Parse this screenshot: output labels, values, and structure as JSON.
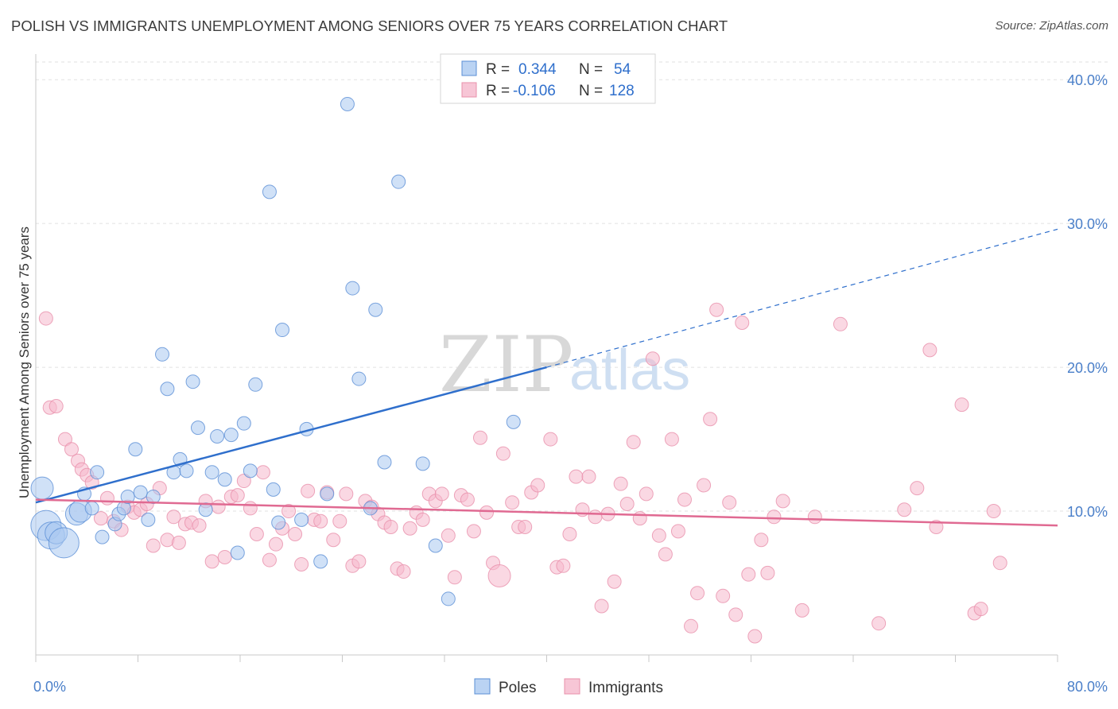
{
  "header": {
    "title": "POLISH VS IMMIGRANTS UNEMPLOYMENT AMONG SENIORS OVER 75 YEARS CORRELATION CHART",
    "source": "Source: ZipAtlas.com"
  },
  "watermark": {
    "zip": "ZIP",
    "atlas": "atlas"
  },
  "legend": {
    "r_label": "R =",
    "n_label": "N =",
    "rows": [
      {
        "series": "Poles",
        "r": "0.344",
        "n": "54",
        "color": "#a9c8f0"
      },
      {
        "series": "Immigrants",
        "r": "-0.106",
        "n": "128",
        "color": "#f5b8cc"
      }
    ]
  },
  "colors": {
    "poles_fill": "#a9c8f0",
    "poles_stroke": "#5b8fd6",
    "poles_line": "#2f6fcc",
    "immigrants_fill": "#f5b8cc",
    "immigrants_stroke": "#e890ab",
    "immigrants_line": "#e06a92",
    "grid": "#e2e2e2",
    "tick_label": "#4a7fc9"
  },
  "chart_data": {
    "type": "scatter",
    "title": "POLISH VS IMMIGRANTS UNEMPLOYMENT AMONG SENIORS OVER 75 YEARS CORRELATION CHART",
    "xlabel": "",
    "ylabel": "Unemployment Among Seniors over 75 years",
    "xlim": [
      0,
      80
    ],
    "ylim": [
      0,
      42
    ],
    "x_tick_labels": [
      "0.0%",
      "80.0%"
    ],
    "y_ticks": [
      10,
      20,
      30,
      40
    ],
    "y_tick_labels": [
      "10.0%",
      "20.0%",
      "30.0%",
      "40.0%"
    ],
    "legend_position": "bottom",
    "series": [
      {
        "name": "Poles",
        "r": 0.344,
        "n": 54,
        "trend": {
          "x": [
            0,
            40
          ],
          "y": [
            10.6,
            20.0
          ],
          "dashed_to": {
            "x": 80,
            "y": 29.6
          }
        },
        "points": [
          [
            0.5,
            11.6,
            2
          ],
          [
            0.8,
            9.0,
            3
          ],
          [
            1.2,
            8.3,
            4
          ],
          [
            1.6,
            8.5,
            2
          ],
          [
            2.2,
            7.8,
            3
          ],
          [
            3.2,
            9.8,
            2
          ],
          [
            3.5,
            10.0,
            2
          ],
          [
            3.8,
            11.2,
            1
          ],
          [
            4.4,
            10.2,
            1
          ],
          [
            4.8,
            12.7,
            1
          ],
          [
            5.2,
            8.2,
            1
          ],
          [
            6.2,
            9.1,
            1
          ],
          [
            6.5,
            9.8,
            1
          ],
          [
            6.9,
            10.2,
            1
          ],
          [
            7.2,
            11.0,
            1
          ],
          [
            7.8,
            14.3,
            1
          ],
          [
            8.2,
            11.3,
            1
          ],
          [
            8.8,
            9.4,
            1
          ],
          [
            9.2,
            11.0,
            1
          ],
          [
            9.9,
            20.9,
            1
          ],
          [
            10.3,
            18.5,
            1
          ],
          [
            10.8,
            12.7,
            1
          ],
          [
            11.3,
            13.6,
            1
          ],
          [
            11.8,
            12.8,
            1
          ],
          [
            12.3,
            19.0,
            1
          ],
          [
            12.7,
            15.8,
            1
          ],
          [
            13.3,
            10.1,
            1
          ],
          [
            13.8,
            12.7,
            1
          ],
          [
            14.2,
            15.2,
            1
          ],
          [
            14.8,
            12.2,
            1
          ],
          [
            15.3,
            15.3,
            1
          ],
          [
            15.8,
            7.1,
            1
          ],
          [
            16.3,
            16.1,
            1
          ],
          [
            16.8,
            12.8,
            1
          ],
          [
            17.2,
            18.8,
            1
          ],
          [
            18.3,
            32.2,
            1
          ],
          [
            18.6,
            11.5,
            1
          ],
          [
            19.0,
            9.2,
            1
          ],
          [
            19.3,
            22.6,
            1
          ],
          [
            20.8,
            9.4,
            1
          ],
          [
            21.2,
            15.7,
            1
          ],
          [
            22.3,
            6.5,
            1
          ],
          [
            22.8,
            11.2,
            1
          ],
          [
            24.4,
            38.3,
            1
          ],
          [
            24.8,
            25.5,
            1
          ],
          [
            25.3,
            19.2,
            1
          ],
          [
            26.2,
            10.2,
            1
          ],
          [
            26.6,
            24.0,
            1
          ],
          [
            27.3,
            13.4,
            1
          ],
          [
            28.4,
            32.9,
            1
          ],
          [
            30.3,
            13.3,
            1
          ],
          [
            31.3,
            7.6,
            1
          ],
          [
            32.3,
            3.9,
            1
          ],
          [
            37.4,
            16.2,
            1
          ]
        ]
      },
      {
        "name": "Immigrants",
        "r": -0.106,
        "n": 128,
        "trend": {
          "x": [
            0,
            80
          ],
          "y": [
            10.8,
            9.0
          ]
        },
        "points": [
          [
            0.8,
            23.4,
            1
          ],
          [
            1.1,
            17.2,
            1
          ],
          [
            1.6,
            17.3,
            1
          ],
          [
            2.3,
            15.0,
            1
          ],
          [
            2.8,
            14.3,
            1
          ],
          [
            3.3,
            13.5,
            1
          ],
          [
            3.6,
            12.9,
            1
          ],
          [
            4.0,
            12.5,
            1
          ],
          [
            4.4,
            12.0,
            1
          ],
          [
            5.1,
            9.5,
            1
          ],
          [
            5.6,
            10.9,
            1
          ],
          [
            6.1,
            9.3,
            1
          ],
          [
            6.7,
            8.7,
            1
          ],
          [
            7.2,
            10.3,
            1
          ],
          [
            7.7,
            9.9,
            1
          ],
          [
            8.2,
            10.1,
            1
          ],
          [
            8.7,
            10.5,
            1
          ],
          [
            9.2,
            7.6,
            1
          ],
          [
            9.7,
            11.6,
            1
          ],
          [
            10.3,
            8.0,
            1
          ],
          [
            10.8,
            9.6,
            1
          ],
          [
            11.2,
            7.8,
            1
          ],
          [
            11.7,
            9.1,
            1
          ],
          [
            12.2,
            9.2,
            1
          ],
          [
            12.8,
            9.0,
            1
          ],
          [
            13.3,
            10.7,
            1
          ],
          [
            13.8,
            6.5,
            1
          ],
          [
            14.3,
            10.3,
            1
          ],
          [
            14.8,
            6.8,
            1
          ],
          [
            15.3,
            11.0,
            1
          ],
          [
            15.8,
            11.1,
            1
          ],
          [
            16.3,
            12.1,
            1
          ],
          [
            16.8,
            10.2,
            1
          ],
          [
            17.3,
            8.4,
            1
          ],
          [
            17.8,
            12.7,
            1
          ],
          [
            18.3,
            6.6,
            1
          ],
          [
            18.8,
            7.7,
            1
          ],
          [
            19.3,
            8.8,
            1
          ],
          [
            19.8,
            10.0,
            1
          ],
          [
            20.3,
            8.4,
            1
          ],
          [
            20.8,
            6.3,
            1
          ],
          [
            21.3,
            11.4,
            1
          ],
          [
            21.8,
            9.4,
            1
          ],
          [
            22.3,
            9.3,
            1
          ],
          [
            22.8,
            11.3,
            1
          ],
          [
            23.3,
            8.0,
            1
          ],
          [
            23.8,
            9.3,
            1
          ],
          [
            24.3,
            11.2,
            1
          ],
          [
            24.8,
            6.2,
            1
          ],
          [
            25.3,
            6.5,
            1
          ],
          [
            25.8,
            10.7,
            1
          ],
          [
            26.3,
            10.3,
            1
          ],
          [
            26.8,
            9.8,
            1
          ],
          [
            27.3,
            9.2,
            1
          ],
          [
            27.8,
            8.9,
            1
          ],
          [
            28.3,
            6.0,
            1
          ],
          [
            28.8,
            5.8,
            1
          ],
          [
            29.3,
            8.8,
            1
          ],
          [
            29.8,
            9.9,
            1
          ],
          [
            30.3,
            9.4,
            1
          ],
          [
            30.8,
            11.2,
            1
          ],
          [
            31.3,
            10.7,
            1
          ],
          [
            31.8,
            11.2,
            1
          ],
          [
            32.3,
            8.3,
            1
          ],
          [
            32.8,
            5.4,
            1
          ],
          [
            33.3,
            11.1,
            1
          ],
          [
            33.8,
            10.8,
            1
          ],
          [
            34.3,
            8.6,
            1
          ],
          [
            34.8,
            15.1,
            1
          ],
          [
            35.3,
            9.9,
            1
          ],
          [
            35.8,
            6.4,
            1
          ],
          [
            36.3,
            5.5,
            2
          ],
          [
            36.6,
            14.0,
            1
          ],
          [
            37.3,
            10.6,
            1
          ],
          [
            37.8,
            8.9,
            1
          ],
          [
            38.3,
            8.9,
            1
          ],
          [
            38.8,
            11.3,
            1
          ],
          [
            39.3,
            11.8,
            1
          ],
          [
            40.3,
            15.0,
            1
          ],
          [
            40.8,
            6.1,
            1
          ],
          [
            41.3,
            6.2,
            1
          ],
          [
            41.8,
            8.4,
            1
          ],
          [
            42.3,
            12.4,
            1
          ],
          [
            42.8,
            10.1,
            1
          ],
          [
            43.3,
            12.4,
            1
          ],
          [
            43.8,
            9.6,
            1
          ],
          [
            44.3,
            3.4,
            1
          ],
          [
            44.8,
            9.8,
            1
          ],
          [
            45.3,
            5.1,
            1
          ],
          [
            45.8,
            11.9,
            1
          ],
          [
            46.3,
            10.5,
            1
          ],
          [
            46.8,
            14.8,
            1
          ],
          [
            47.3,
            9.5,
            1
          ],
          [
            47.8,
            11.2,
            1
          ],
          [
            48.3,
            20.6,
            1
          ],
          [
            48.8,
            8.3,
            1
          ],
          [
            49.3,
            7.0,
            1
          ],
          [
            49.8,
            15.0,
            1
          ],
          [
            50.3,
            8.6,
            1
          ],
          [
            50.8,
            10.8,
            1
          ],
          [
            51.3,
            2.0,
            1
          ],
          [
            51.8,
            4.3,
            1
          ],
          [
            52.3,
            11.8,
            1
          ],
          [
            52.8,
            16.4,
            1
          ],
          [
            53.3,
            24.0,
            1
          ],
          [
            53.8,
            4.1,
            1
          ],
          [
            54.3,
            10.6,
            1
          ],
          [
            54.8,
            2.8,
            1
          ],
          [
            55.3,
            23.1,
            1
          ],
          [
            55.8,
            5.6,
            1
          ],
          [
            56.3,
            1.3,
            1
          ],
          [
            56.8,
            8.0,
            1
          ],
          [
            57.3,
            5.7,
            1
          ],
          [
            57.8,
            9.6,
            1
          ],
          [
            60.0,
            3.1,
            1
          ],
          [
            63.0,
            23.0,
            1
          ],
          [
            66.0,
            2.2,
            1
          ],
          [
            68.0,
            10.1,
            1
          ],
          [
            70.0,
            21.2,
            1
          ],
          [
            72.5,
            17.4,
            1
          ],
          [
            73.5,
            2.9,
            1
          ],
          [
            74.0,
            3.2,
            1
          ],
          [
            75.0,
            10.0,
            1
          ],
          [
            75.5,
            6.4,
            1
          ],
          [
            69.0,
            11.6,
            1
          ],
          [
            70.5,
            8.9,
            1
          ],
          [
            58.5,
            10.7,
            1
          ],
          [
            61.0,
            9.6,
            1
          ]
        ]
      }
    ]
  }
}
